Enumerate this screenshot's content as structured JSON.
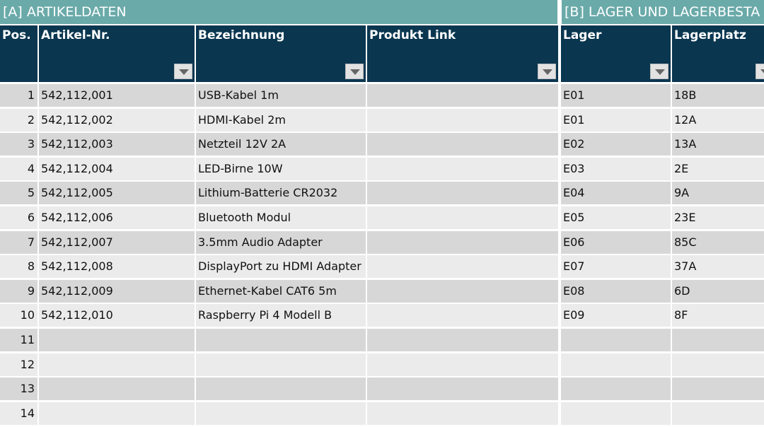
{
  "sections": {
    "a_title": "[A] ARTIKELDATEN",
    "b_title": "[B] LAGER UND LAGERBESTA"
  },
  "columns": [
    "Pos.",
    "Artikel-Nr.",
    "Bezeichnung",
    "Produkt Link",
    "Lager",
    "Lagerplatz"
  ],
  "rows": [
    {
      "pos": "1",
      "artikel_nr": "542,112,001",
      "bezeichnung": "USB-Kabel 1m",
      "link": "",
      "lager": "E01",
      "lagerplatz": "18B"
    },
    {
      "pos": "2",
      "artikel_nr": "542,112,002",
      "bezeichnung": "HDMI-Kabel 2m",
      "link": "",
      "lager": "E01",
      "lagerplatz": "12A"
    },
    {
      "pos": "3",
      "artikel_nr": "542,112,003",
      "bezeichnung": "Netzteil 12V 2A",
      "link": "",
      "lager": "E02",
      "lagerplatz": "13A"
    },
    {
      "pos": "4",
      "artikel_nr": "542,112,004",
      "bezeichnung": "LED-Birne 10W",
      "link": "",
      "lager": "E03",
      "lagerplatz": "2E"
    },
    {
      "pos": "5",
      "artikel_nr": "542,112,005",
      "bezeichnung": "Lithium-Batterie CR2032",
      "link": "",
      "lager": "E04",
      "lagerplatz": "9A"
    },
    {
      "pos": "6",
      "artikel_nr": "542,112,006",
      "bezeichnung": "Bluetooth Modul",
      "link": "",
      "lager": "E05",
      "lagerplatz": "23E"
    },
    {
      "pos": "7",
      "artikel_nr": "542,112,007",
      "bezeichnung": "3.5mm Audio Adapter",
      "link": "",
      "lager": "E06",
      "lagerplatz": "85C"
    },
    {
      "pos": "8",
      "artikel_nr": "542,112,008",
      "bezeichnung": "DisplayPort zu HDMI Adapter",
      "link": "",
      "lager": "E07",
      "lagerplatz": "37A"
    },
    {
      "pos": "9",
      "artikel_nr": "542,112,009",
      "bezeichnung": "Ethernet-Kabel CAT6 5m",
      "link": "",
      "lager": "E08",
      "lagerplatz": "6D"
    },
    {
      "pos": "10",
      "artikel_nr": "542,112,010",
      "bezeichnung": "Raspberry Pi 4 Modell B",
      "link": "",
      "lager": "E09",
      "lagerplatz": "8F"
    },
    {
      "pos": "11",
      "artikel_nr": "",
      "bezeichnung": "",
      "link": "",
      "lager": "",
      "lagerplatz": ""
    },
    {
      "pos": "12",
      "artikel_nr": "",
      "bezeichnung": "",
      "link": "",
      "lager": "",
      "lagerplatz": ""
    },
    {
      "pos": "13",
      "artikel_nr": "",
      "bezeichnung": "",
      "link": "",
      "lager": "",
      "lagerplatz": ""
    },
    {
      "pos": "14",
      "artikel_nr": "",
      "bezeichnung": "",
      "link": "",
      "lager": "",
      "lagerplatz": ""
    }
  ],
  "colors": {
    "section_bar": "#6aaaa9",
    "header_bg": "#0a3650",
    "row_odd": "#d7d7d7",
    "row_even": "#ebebeb"
  },
  "icons": {
    "filter": "dropdown-triangle"
  }
}
